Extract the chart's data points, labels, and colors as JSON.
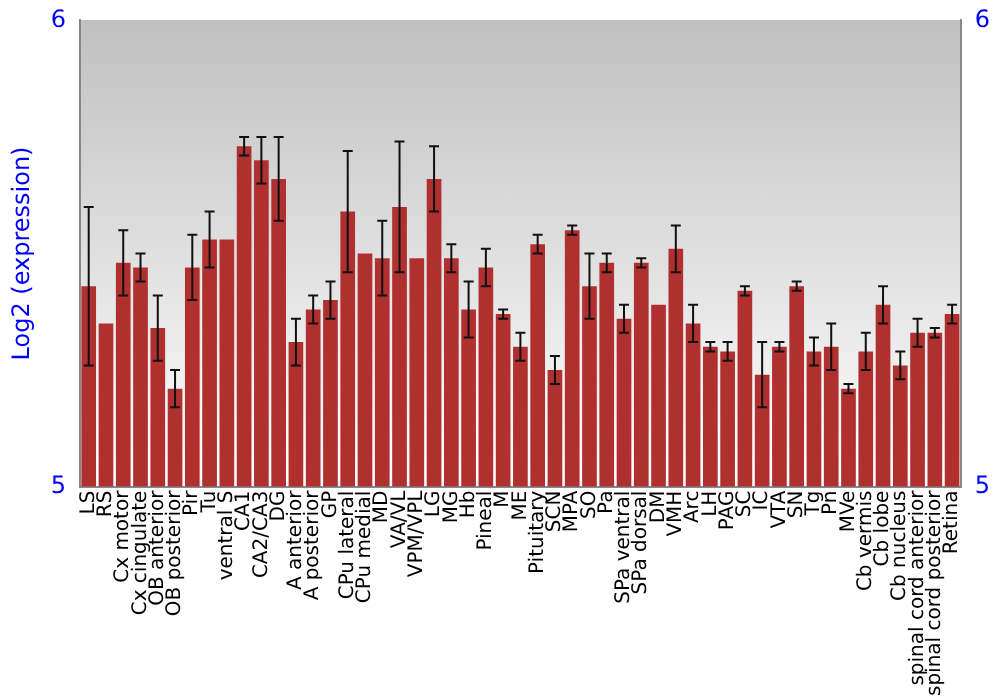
{
  "chart_data": {
    "type": "bar",
    "ylabel": "Log2 (expression)",
    "categories": [
      "LS",
      "RS",
      "Cx motor",
      "Cx cingulate",
      "OB anterior",
      "OB posterior",
      "Pir",
      "Tu",
      "ventral S",
      "CA1",
      "CA2/CA3",
      "DG",
      "A anterior",
      "A posterior",
      "GP",
      "CPu lateral",
      "CPu medial",
      "MD",
      "VA/VL",
      "VPM/VPL",
      "LG",
      "MG",
      "Hb",
      "Pineal",
      "M",
      "ME",
      "Pituitary",
      "SCN",
      "MPA",
      "SO",
      "Pa",
      "SPa ventral",
      "SPa dorsal",
      "DM",
      "VMH",
      "Arc",
      "LH",
      "PAG",
      "SC",
      "IC",
      "VTA",
      "SN",
      "Tg",
      "Pn",
      "MVe",
      "Cb vermis",
      "Cb lobe",
      "Cb nucleus",
      "spinal cord anterior",
      "spinal cord posterior",
      "Retina"
    ],
    "values": [
      5.43,
      5.35,
      5.48,
      5.47,
      5.34,
      5.21,
      5.47,
      5.53,
      5.53,
      5.73,
      5.7,
      5.66,
      5.31,
      5.38,
      5.4,
      5.59,
      5.5,
      5.49,
      5.6,
      5.49,
      5.66,
      5.49,
      5.38,
      5.47,
      5.37,
      5.3,
      5.52,
      5.25,
      5.55,
      5.43,
      5.48,
      5.36,
      5.48,
      5.39,
      5.51,
      5.35,
      5.3,
      5.29,
      5.42,
      5.24,
      5.3,
      5.43,
      5.29,
      5.3,
      5.21,
      5.29,
      5.39,
      5.26,
      5.33,
      5.33,
      5.37
    ],
    "errors": [
      0.17,
      null,
      0.07,
      0.03,
      0.07,
      0.04,
      0.07,
      0.06,
      null,
      0.02,
      0.05,
      0.09,
      0.05,
      0.03,
      0.04,
      0.13,
      null,
      0.08,
      0.14,
      null,
      0.07,
      0.03,
      0.06,
      0.04,
      0.01,
      0.03,
      0.02,
      0.03,
      0.01,
      0.07,
      0.02,
      0.03,
      0.01,
      null,
      0.05,
      0.04,
      0.01,
      0.02,
      0.01,
      0.07,
      0.01,
      0.01,
      0.03,
      0.05,
      0.01,
      0.04,
      0.04,
      0.03,
      0.03,
      0.01,
      0.02
    ],
    "color": "#b03030",
    "ylim": [
      5,
      6
    ],
    "yticks": [
      5,
      6
    ],
    "y2lim": [
      5,
      6
    ],
    "y2ticks": [
      5,
      6
    ],
    "grid": false,
    "legend": false
  }
}
